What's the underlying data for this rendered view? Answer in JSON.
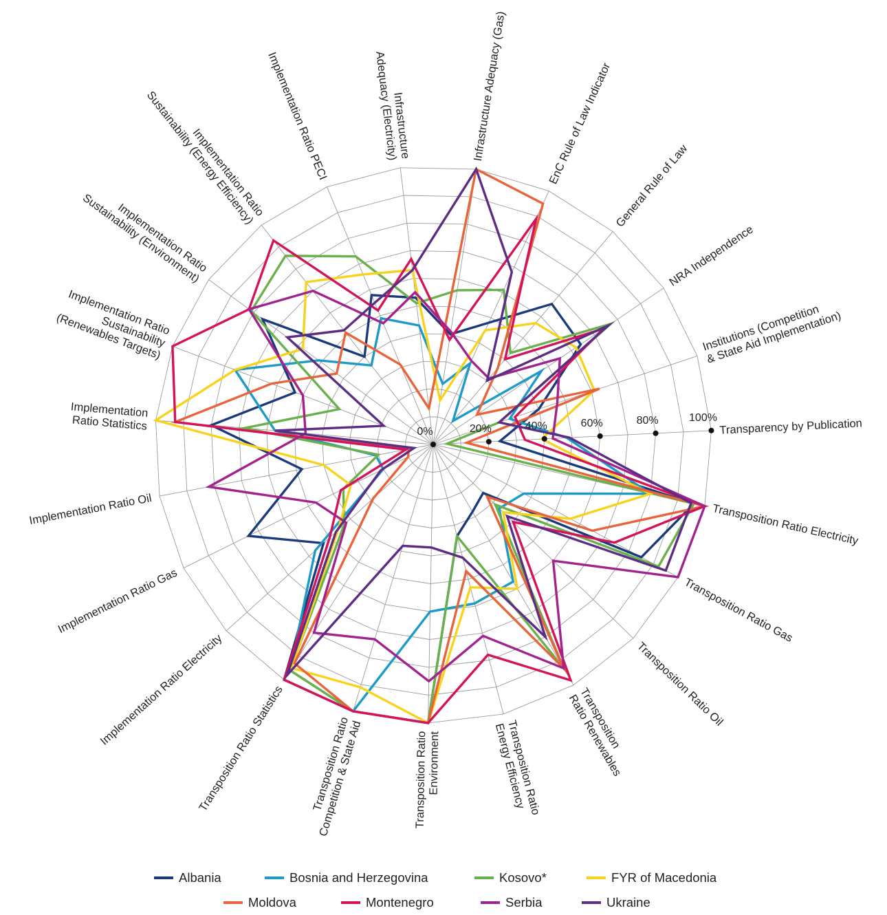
{
  "chart_data": {
    "type": "radar",
    "axes": [
      "Transparency by Publication",
      "Transposition Ratio Electricity",
      "Transposition Ratio Gas",
      "Transposition Ratio Oil",
      "Transposition Ratio Renewables",
      "Transposition Ratio Energy Efficiency",
      "Transposition Ratio Environment",
      "Transposition Ratio Competition & State Aid",
      "Transposition Ratio Statistics",
      "Implementation Ratio Electricity",
      "Implementation Ratio Gas",
      "Implementation Ratio Oil",
      "Implementation Ratio Statistics",
      "Implementation Ratio Sustainability (Renewables Targets)",
      "Implementation Ratio Sustainability (Environment)",
      "Implementation Ratio Sustainability (Energy Efficiency)",
      "Implementation Ratio PECI",
      "Infrastructure Adequacy (Electricity)",
      "Infrastructure Adequacy (Gas)",
      "EnC Rule of Law Indicator",
      "General Rule of Law",
      "NRA Independence",
      "Institutions (Competition & State Aid Implementation)"
    ],
    "axis_label_lines": [
      [
        "Transparency by Publication"
      ],
      [
        "Transposition Ratio Electricity"
      ],
      [
        "Transposition Ratio Gas"
      ],
      [
        "Transposition Ratio Oil"
      ],
      [
        "Transposition",
        "Ratio Renewables"
      ],
      [
        "Transposition Ratio",
        "Energy Efficiency"
      ],
      [
        "Transposition Ratio",
        "Environment"
      ],
      [
        "Transposition Ratio",
        "Competition & State Aid"
      ],
      [
        "Transposition Ratio Statistics"
      ],
      [
        "Implementation Ratio Electricity"
      ],
      [
        "Implementation Ratio Gas"
      ],
      [
        "Implementation Ratio Oil"
      ],
      [
        "Implementation",
        "Ratio Statistics"
      ],
      [
        "Implementation Ratio",
        "Sustainability",
        "(Renewables Targets)"
      ],
      [
        "Implementation Ratio",
        "Sustainability (Environment)"
      ],
      [
        "Implementation Ratio",
        "Sustainability (Energy Efficiency)"
      ],
      [
        "Implementation Ratio PECI"
      ],
      [
        "Infrastructure",
        "Adequacy (Electricity)"
      ],
      [
        "Infrastructure Adequacy (Gas)"
      ],
      [
        "EnC Rule of Law Indicator"
      ],
      [
        "General Rule of Law"
      ],
      [
        "NRA Independence"
      ],
      [
        "Institutions (Competition",
        "& State Aid Implementation)"
      ]
    ],
    "radial_ticks": [
      "0%",
      "20%",
      "40%",
      "60%",
      "80%",
      "100%"
    ],
    "range": [
      0,
      100
    ],
    "grid": true,
    "legend_position": "bottom",
    "series": [
      {
        "name": "Albania",
        "color": "#1b3a7a",
        "values": [
          24,
          96,
          85,
          25,
          28,
          34,
          100,
          100,
          100,
          53,
          74,
          48,
          80,
          53,
          76,
          40,
          58,
          53,
          40,
          48,
          66,
          64,
          40
        ]
      },
      {
        "name": "Bosnia and Herzegovina",
        "color": "#1e9ac6",
        "values": [
          48,
          80,
          37,
          33,
          57,
          59,
          60,
          100,
          96,
          57,
          20,
          21,
          57,
          76,
          51,
          36,
          49,
          43,
          22,
          32,
          11,
          47,
          29
        ]
      },
      {
        "name": "Kosovo*",
        "color": "#6ab04c",
        "values": [
          5,
          96,
          92,
          31,
          93,
          34,
          100,
          100,
          96,
          43,
          36,
          20,
          68,
          36,
          81,
          86,
          73,
          51,
          56,
          61,
          43,
          77,
          25
        ]
      },
      {
        "name": "FYR of Macedonia",
        "color": "#f7d31e",
        "values": [
          39,
          80,
          56,
          35,
          60,
          53,
          100,
          91,
          95,
          46,
          33,
          40,
          100,
          76,
          58,
          74,
          66,
          63,
          16,
          45,
          57,
          62,
          61
        ]
      },
      {
        "name": "Moldova",
        "color": "#e8643c",
        "values": [
          12,
          100,
          65,
          27,
          93,
          47,
          100,
          100,
          93,
          29,
          10,
          9,
          93,
          62,
          43,
          51,
          31,
          13,
          100,
          95,
          36,
          19,
          63
        ]
      },
      {
        "name": "Montenegro",
        "color": "#d4145a",
        "values": [
          33,
          100,
          74,
          40,
          98,
          78,
          100,
          100,
          100,
          50,
          37,
          10,
          93,
          100,
          82,
          93,
          52,
          67,
          38,
          89,
          40,
          74,
          31
        ]
      },
      {
        "name": "Serbia",
        "color": "#a3238e",
        "values": [
          43,
          100,
          100,
          60,
          93,
          71,
          85,
          73,
          80,
          42,
          47,
          82,
          46,
          50,
          82,
          70,
          47,
          55,
          41,
          33,
          31,
          55,
          47
        ]
      },
      {
        "name": "Ukraine",
        "color": "#5c2d83",
        "values": [
          49,
          95,
          95,
          37,
          80,
          42,
          37,
          38,
          98,
          47,
          21,
          7,
          57,
          19,
          65,
          52,
          55,
          63,
          100,
          68,
          30,
          76,
          25
        ]
      }
    ]
  }
}
